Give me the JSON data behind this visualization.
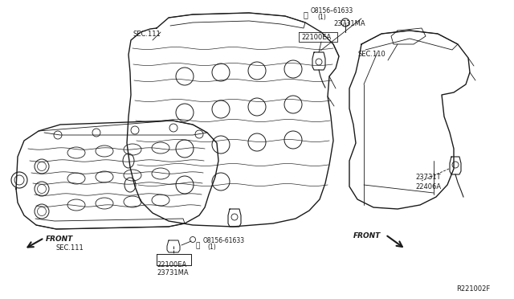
{
  "bg_color": "#ffffff",
  "line_color": "#1a1a1a",
  "diagram_id": "R221002F",
  "labels": {
    "top_bolt": "B O8156-61633",
    "top_bolt_sub": "(1)",
    "top_sensor1": "23731MA",
    "top_sensor2": "22100EA",
    "sec111_top": "SEC.111",
    "sec110": "SEC.110",
    "bottom_sensor1": "22100EA",
    "bottom_sensor2": "23731MA",
    "bottom_bolt": "® O8156-61633",
    "bottom_bolt_sub": "(1)",
    "front_left": "FRONT",
    "front_right": "FRONT",
    "sec111_bottom": "SEC.111",
    "right_sensor1": "23731T",
    "right_sensor2": "22406A"
  },
  "img_path": null
}
